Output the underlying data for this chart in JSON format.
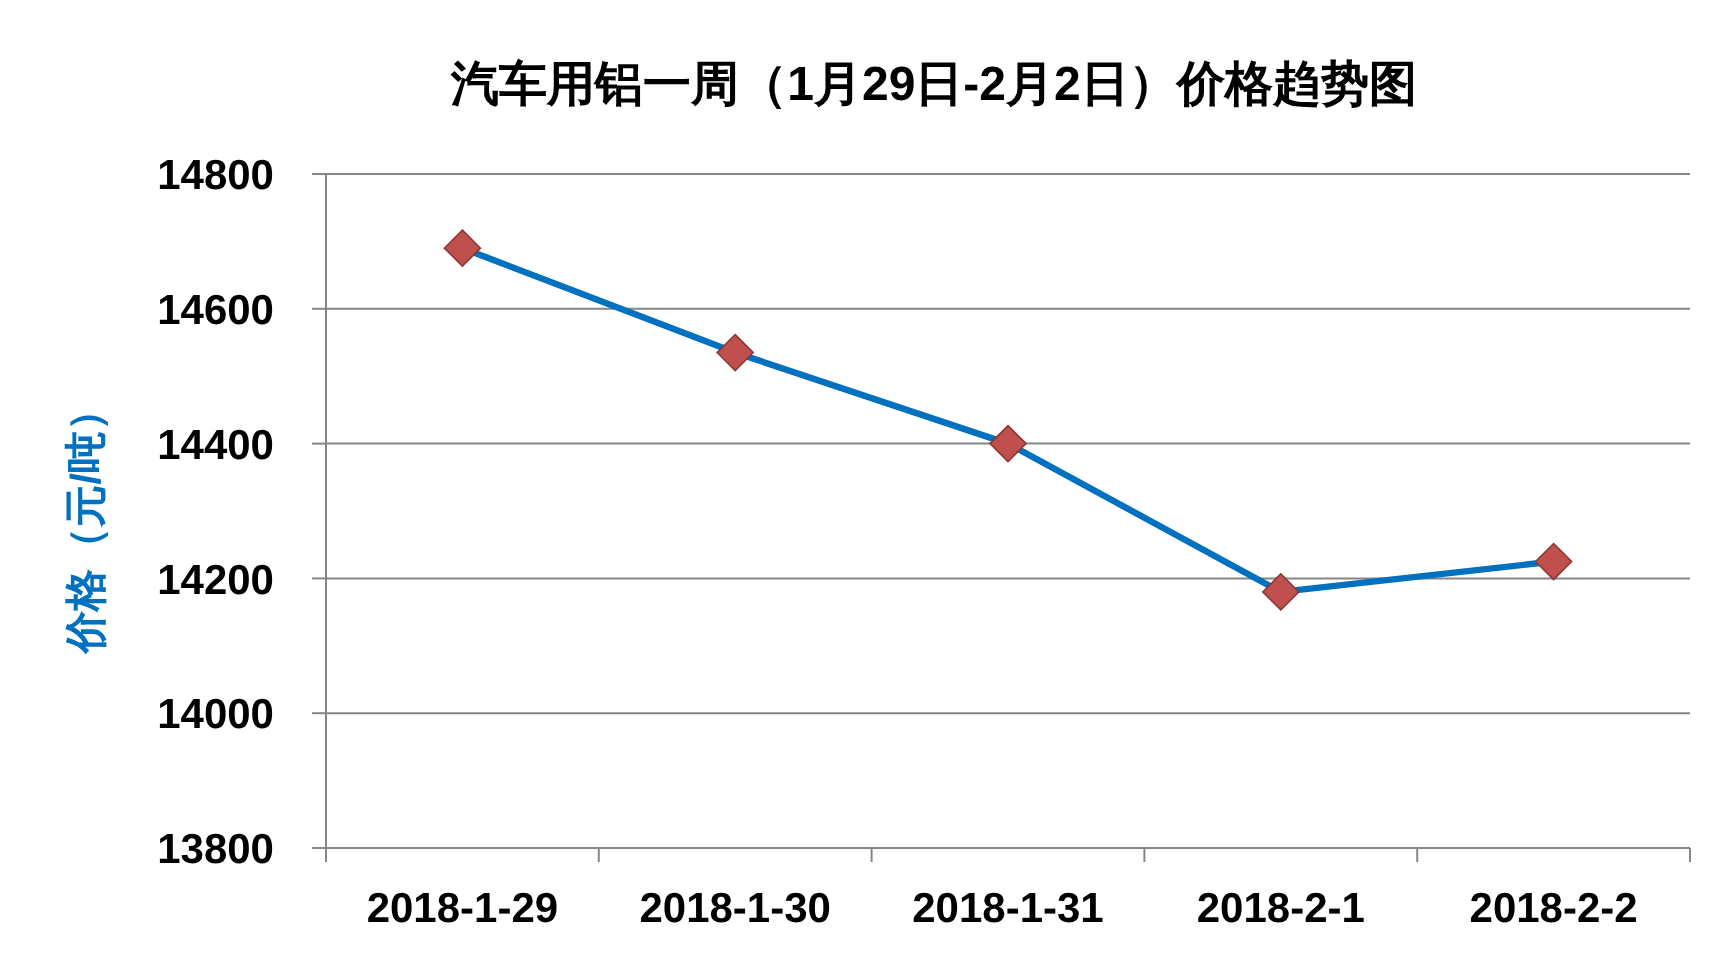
{
  "chart_data": {
    "type": "line",
    "title": "汽车用铝一周（1月29日-2月2日）价格趋势图",
    "ylabel": "价格（元/吨）",
    "categories": [
      "2018-1-29",
      "2018-1-30",
      "2018-1-31",
      "2018-2-1",
      "2018-2-2"
    ],
    "series": [
      {
        "color": "#0070c0",
        "colors": [
          "#c0504d",
          "#c0504d",
          "#c0504d",
          "#c0504d",
          "#c0504d"
        ],
        "values": [
          14690,
          14535,
          14400,
          14180,
          14225
        ]
      }
    ],
    "ylim": [
      13800,
      14800
    ],
    "yticks": [
      13800,
      14000,
      14200,
      14400,
      14600,
      14800
    ],
    "grid": "y",
    "marker": "diamond",
    "line_style": "solid"
  }
}
